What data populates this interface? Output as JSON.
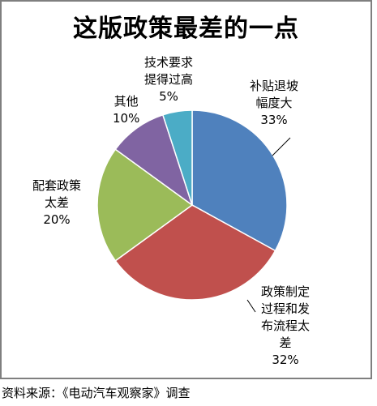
{
  "title": "这版政策最差的一点",
  "source": "资料来源：《电动汽车观察家》调查",
  "chart_data": {
    "type": "pie",
    "title": "这版政策最差的一点",
    "start_angle_deg": 0,
    "direction": "clockwise",
    "slices": [
      {
        "label_lines": [
          "补贴退坡",
          "幅度大"
        ],
        "value_text": "33%",
        "value": 33,
        "color": "#4f81bd"
      },
      {
        "label_lines": [
          "政策制定",
          "过程和发",
          "布流程太",
          "差"
        ],
        "value_text": "32%",
        "value": 32,
        "color": "#c0504d"
      },
      {
        "label_lines": [
          "配套政策",
          "太差"
        ],
        "value_text": "20%",
        "value": 20,
        "color": "#9bbb59"
      },
      {
        "label_lines": [
          "其他"
        ],
        "value_text": "10%",
        "value": 10,
        "color": "#8064a2"
      },
      {
        "label_lines": [
          "技术要求",
          "提得过高"
        ],
        "value_text": "5%",
        "value": 5,
        "color": "#4bacc6"
      }
    ]
  }
}
